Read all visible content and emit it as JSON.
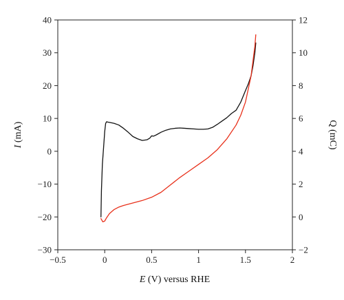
{
  "chart_data": {
    "type": "line",
    "title": "",
    "xlabel": "E (V) versus RHE",
    "xlabel_italic_part": "E",
    "xlabel_rest": " (V) versus RHE",
    "ylabel_left": "I (mA)",
    "ylabel_left_italic_part": "I",
    "ylabel_left_rest": " (mA)",
    "ylabel_right": "Q (mC)",
    "xlim": [
      -0.5,
      2
    ],
    "ylim_left": [
      -30,
      40
    ],
    "ylim_right": [
      -2,
      12
    ],
    "x_ticks": [
      "−0.5",
      "0",
      "0.5",
      "1",
      "1.5",
      "2"
    ],
    "y_ticks_left": [
      "−30",
      "−20",
      "−10",
      "0",
      "10",
      "20",
      "30",
      "40"
    ],
    "y_ticks_right": [
      "−2",
      "0",
      "2",
      "4",
      "6",
      "8",
      "10",
      "12"
    ],
    "grid": false,
    "series": [
      {
        "color": "#111111",
        "axis": "left",
        "x": [
          -0.04,
          -0.035,
          -0.025,
          -0.01,
          0.0,
          0.01,
          0.02,
          0.03,
          0.05,
          0.1,
          0.15,
          0.2,
          0.25,
          0.3,
          0.35,
          0.4,
          0.45,
          0.48,
          0.5,
          0.52,
          0.55,
          0.6,
          0.65,
          0.7,
          0.75,
          0.8,
          0.85,
          0.9,
          0.95,
          1.0,
          1.05,
          1.1,
          1.15,
          1.2,
          1.25,
          1.3,
          1.35,
          1.4,
          1.45,
          1.5,
          1.53,
          1.56,
          1.58,
          1.6,
          1.61
        ],
        "y": [
          -20,
          -12,
          -4,
          2,
          6,
          8.5,
          9,
          8.9,
          8.8,
          8.5,
          8.0,
          7.0,
          5.8,
          4.5,
          3.8,
          3.3,
          3.5,
          4.0,
          4.7,
          4.6,
          5.0,
          5.8,
          6.4,
          6.8,
          7.0,
          7.1,
          7.0,
          6.9,
          6.8,
          6.7,
          6.7,
          6.8,
          7.3,
          8.2,
          9.2,
          10.2,
          11.5,
          12.5,
          15.0,
          18.5,
          20.5,
          23.0,
          26.0,
          30.0,
          33.0
        ]
      },
      {
        "color": "#e8301a",
        "axis": "right",
        "x": [
          -0.04,
          -0.02,
          0.0,
          0.02,
          0.05,
          0.1,
          0.15,
          0.2,
          0.3,
          0.4,
          0.5,
          0.6,
          0.7,
          0.8,
          0.9,
          1.0,
          1.1,
          1.2,
          1.3,
          1.4,
          1.45,
          1.5,
          1.53,
          1.56,
          1.58,
          1.6,
          1.61
        ],
        "y": [
          -0.1,
          -0.3,
          -0.25,
          -0.05,
          0.2,
          0.45,
          0.6,
          0.7,
          0.85,
          1.0,
          1.2,
          1.5,
          1.95,
          2.4,
          2.8,
          3.2,
          3.6,
          4.1,
          4.75,
          5.6,
          6.2,
          7.0,
          7.8,
          8.6,
          9.5,
          10.4,
          11.1
        ]
      }
    ]
  }
}
